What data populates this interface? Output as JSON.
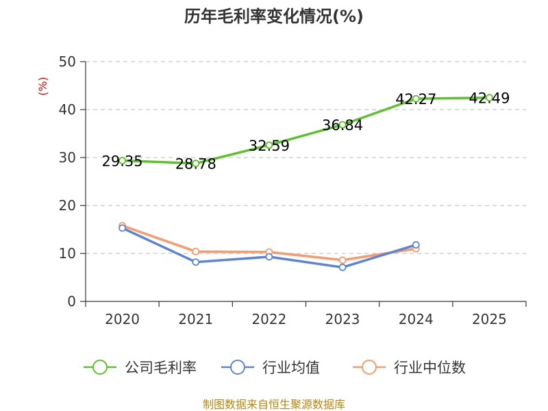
{
  "chart_data": {
    "type": "line",
    "title": "历年毛利率变化情况(%)",
    "ylabel": "(%)",
    "xlabel": "",
    "categories": [
      "2020",
      "2021",
      "2022",
      "2023",
      "2024",
      "2025"
    ],
    "ylim": [
      0,
      50
    ],
    "yticks": [
      0,
      10,
      20,
      30,
      40,
      50
    ],
    "grid": "horizontal-dashed",
    "legend_position": "bottom",
    "series": [
      {
        "name": "公司毛利率",
        "color": "#5cc22b",
        "labels": true,
        "values": [
          29.35,
          28.78,
          32.59,
          36.84,
          42.27,
          42.49
        ]
      },
      {
        "name": "行业均值",
        "color": "#5b84d9",
        "labels": false,
        "values": [
          15.3,
          8.2,
          9.3,
          7.1,
          11.8,
          null
        ]
      },
      {
        "name": "行业中位数",
        "color": "#f89a6b",
        "labels": false,
        "values": [
          15.8,
          10.4,
          10.3,
          8.6,
          11.0,
          null
        ]
      }
    ]
  },
  "source": "制图数据来自恒生聚源数据库"
}
